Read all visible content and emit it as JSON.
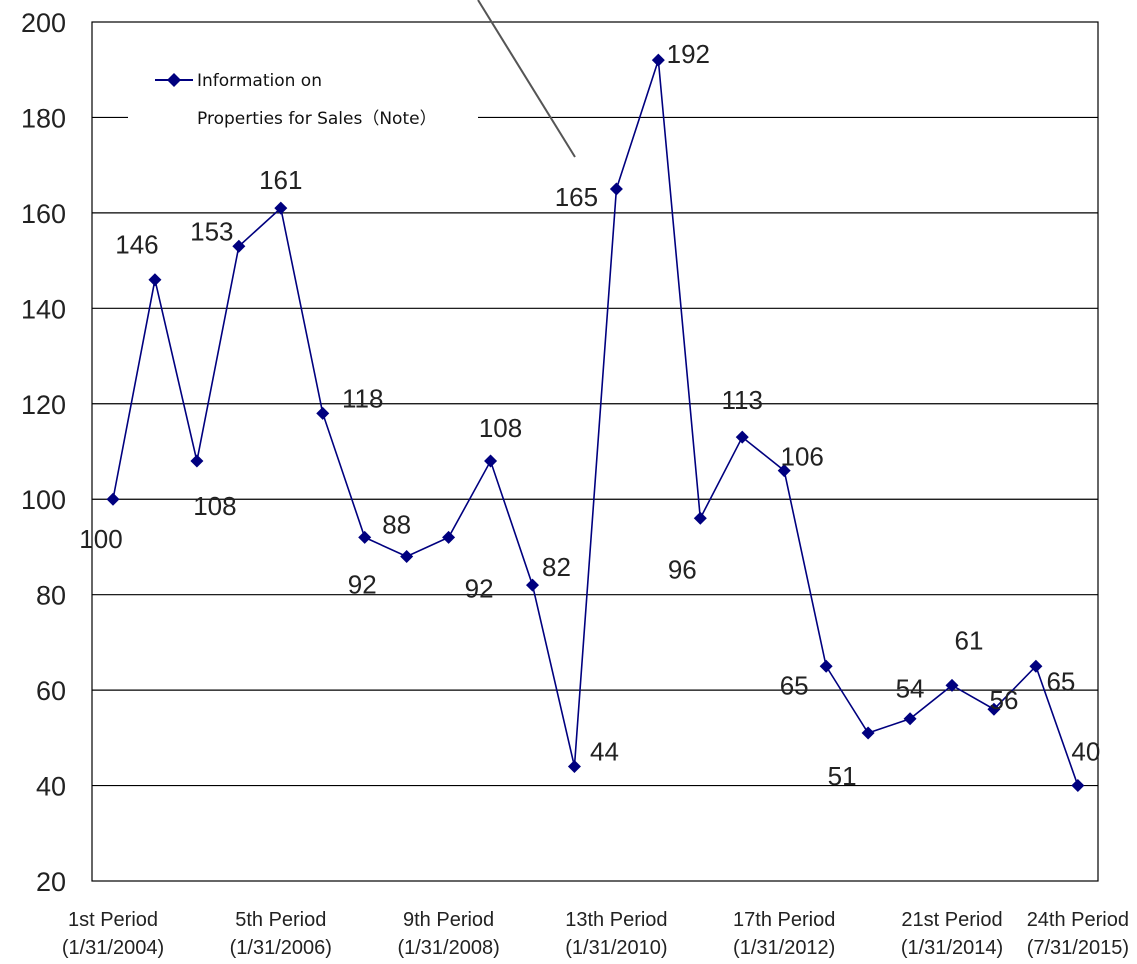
{
  "chart_data": {
    "type": "line",
    "title": "",
    "xlabel": "",
    "ylabel": "",
    "ylim": [
      20,
      200
    ],
    "y_ticks": [
      20,
      40,
      60,
      80,
      100,
      120,
      140,
      160,
      180,
      200
    ],
    "grid": true,
    "legend_position": "top-left",
    "x_tick_labels": [
      {
        "index": 0,
        "line1": "1st Period",
        "line2": "(1/31/2004)"
      },
      {
        "index": 4,
        "line1": "5th Period",
        "line2": "(1/31/2006)"
      },
      {
        "index": 8,
        "line1": "9th Period",
        "line2": "(1/31/2008)"
      },
      {
        "index": 12,
        "line1": "13th Period",
        "line2": "(1/31/2010)"
      },
      {
        "index": 16,
        "line1": "17th Period",
        "line2": "(1/31/2012)"
      },
      {
        "index": 20,
        "line1": "21st Period",
        "line2": "(1/31/2014)"
      },
      {
        "index": 23,
        "line1": "24th Period",
        "line2": "(7/31/2015)"
      }
    ],
    "series": [
      {
        "name": "Information on Properties for Sales（Note）",
        "legend_lines": [
          "Information on",
          "Properties for Sales（Note）"
        ],
        "color": "#00007f",
        "marker": "diamond",
        "values": [
          100,
          146,
          108,
          153,
          161,
          118,
          92,
          88,
          92,
          108,
          82,
          44,
          165,
          192,
          96,
          113,
          106,
          65,
          51,
          54,
          61,
          56,
          65,
          40
        ],
        "data_labels": [
          "100",
          "146",
          "108",
          "153",
          "161",
          "118",
          "92",
          "88",
          "92",
          "108",
          "82",
          "44",
          "165",
          "192",
          "96",
          "113",
          "106",
          "65",
          "51",
          "54",
          "61",
          "56",
          "65",
          "40"
        ]
      }
    ],
    "annotation_line": {
      "color": "#555555"
    }
  }
}
